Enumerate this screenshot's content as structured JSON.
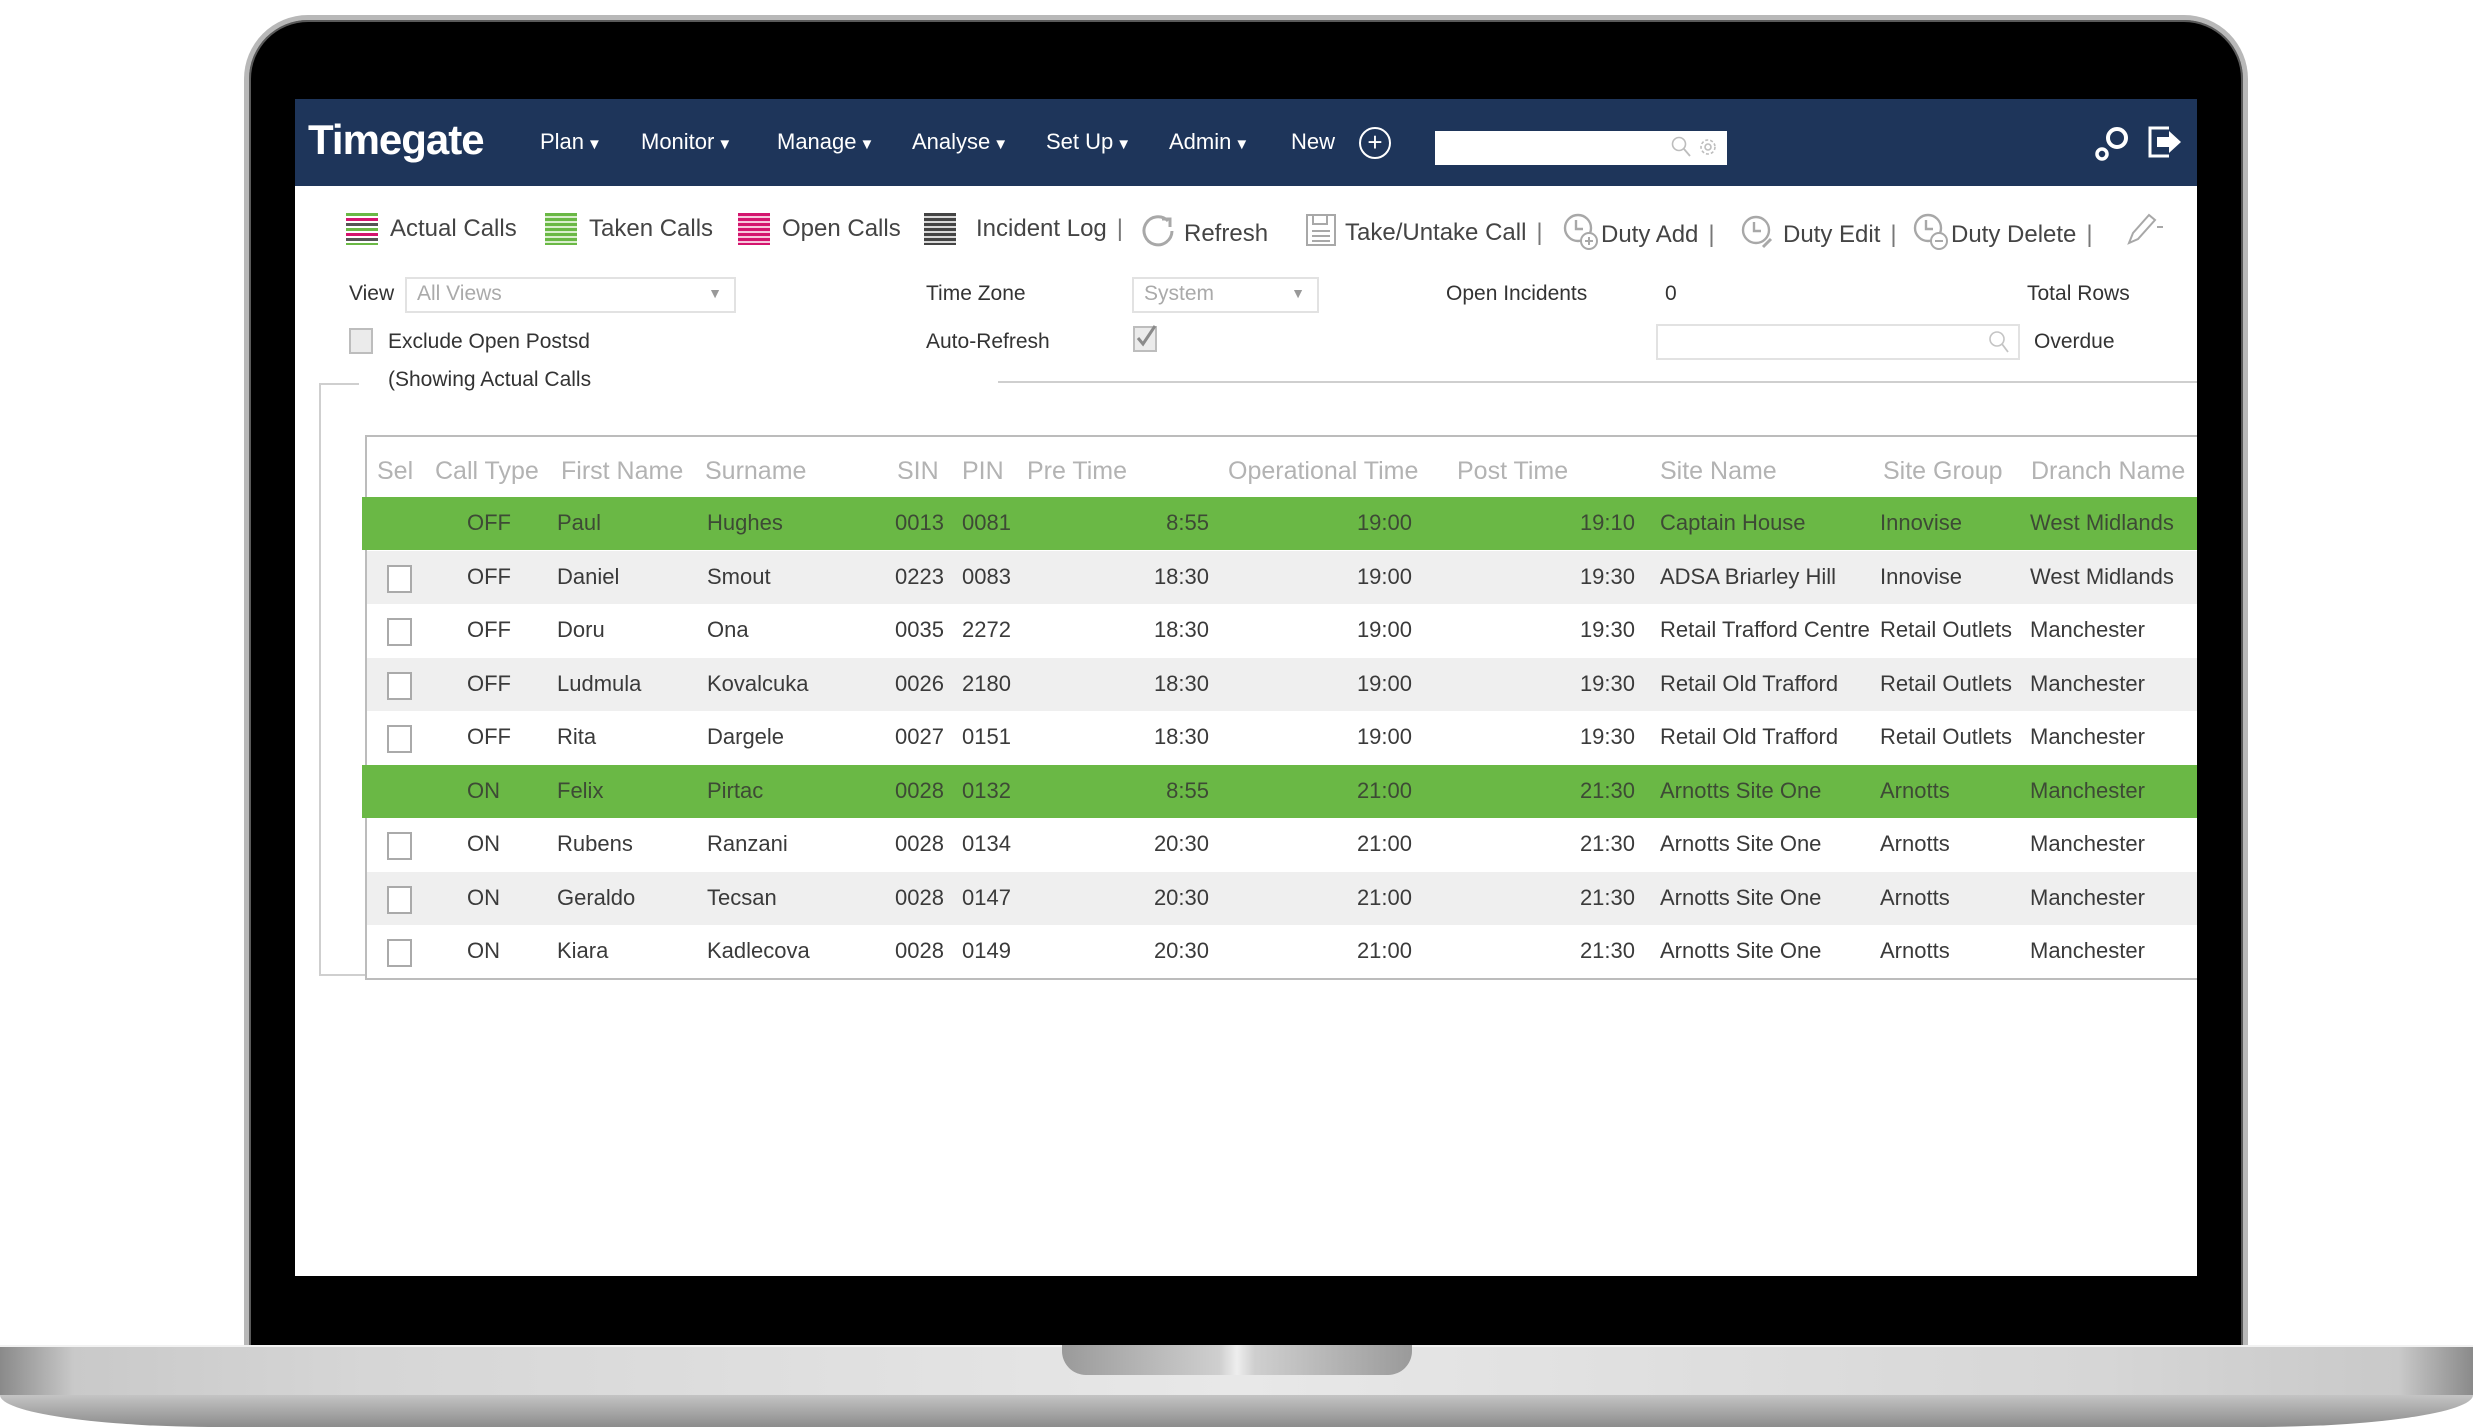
{
  "app": {
    "logo": "Timegate",
    "menu": [
      {
        "label": "Plan",
        "caret": "▼"
      },
      {
        "label": "Monitor",
        "caret": "▼"
      },
      {
        "label": "Manage",
        "caret": "▼"
      },
      {
        "label": "Analyse",
        "caret": "▼"
      },
      {
        "label": "Set Up",
        "caret": "▼"
      },
      {
        "label": "Admin",
        "caret": "▼"
      }
    ],
    "new_label": "New",
    "new_icon": "+",
    "search": {
      "value": "",
      "placeholder": ""
    }
  },
  "toolbar": {
    "actual_calls": "Actual Calls",
    "taken_calls": "Taken Calls",
    "open_calls": "Open Calls",
    "incident_log": "Incident Log",
    "refresh": "Refresh",
    "take_untake": "Take/Untake Call",
    "duty_add": "Duty Add",
    "duty_edit": "Duty Edit",
    "duty_delete": "Duty Delete",
    "separator": "|"
  },
  "filters": {
    "view_label": "View",
    "view_value": "All Views",
    "time_zone_label": "Time Zone",
    "time_zone_value": "System",
    "open_incidents_label": "Open Incidents",
    "open_incidents_value": "0",
    "total_rows_label": "Total Rows",
    "exclude_label": "Exclude Open Postsd",
    "auto_refresh_label": "Auto-Refresh",
    "overdue_label": "Overdue",
    "showing_label": "(Showing Actual Calls",
    "search_value": ""
  },
  "colors": {
    "nav": "#1e355a",
    "highlight_row": "#6ab845",
    "actual_pink": "#d4146e",
    "taken_green": "#6ab845",
    "incident_gray": "#444444"
  },
  "table": {
    "headers": [
      "Sel",
      "Call Type",
      "First Name",
      "Surname",
      "SIN",
      "PIN",
      "Pre Time",
      "Operational Time",
      "Post Time",
      "Site Name",
      "Site Group",
      "Dranch Name"
    ],
    "rows": [
      {
        "highlight": true,
        "checkbox": false,
        "call_type": "OFF",
        "first": "Paul",
        "surname": "Hughes",
        "sin": "0013",
        "pin": "0081",
        "pre": "8:55",
        "op": "19:00",
        "post": "19:10",
        "site": "Captain House",
        "group": "Innovise",
        "branch": "West Midlands"
      },
      {
        "highlight": false,
        "checkbox": true,
        "call_type": "OFF",
        "first": "Daniel",
        "surname": "Smout",
        "sin": "0223",
        "pin": "0083",
        "pre": "18:30",
        "op": "19:00",
        "post": "19:30",
        "site": "ADSA Briarley Hill",
        "group": "Innovise",
        "branch": "West Midlands"
      },
      {
        "highlight": false,
        "checkbox": true,
        "call_type": "OFF",
        "first": "Doru",
        "surname": "Ona",
        "sin": "0035",
        "pin": "2272",
        "pre": "18:30",
        "op": "19:00",
        "post": "19:30",
        "site": "Retail Trafford Centre",
        "group": "Retail Outlets",
        "branch": "Manchester"
      },
      {
        "highlight": false,
        "checkbox": true,
        "call_type": "OFF",
        "first": "Ludmula",
        "surname": "Kovalcuka",
        "sin": "0026",
        "pin": "2180",
        "pre": "18:30",
        "op": "19:00",
        "post": "19:30",
        "site": "Retail Old Trafford",
        "group": "Retail Outlets",
        "branch": "Manchester"
      },
      {
        "highlight": false,
        "checkbox": true,
        "call_type": "OFF",
        "first": "Rita",
        "surname": "Dargele",
        "sin": "0027",
        "pin": "0151",
        "pre": "18:30",
        "op": "19:00",
        "post": "19:30",
        "site": "Retail Old Trafford",
        "group": "Retail Outlets",
        "branch": "Manchester"
      },
      {
        "highlight": true,
        "checkbox": false,
        "call_type": "ON",
        "first": "Felix",
        "surname": "Pirtac",
        "sin": "0028",
        "pin": "0132",
        "pre": "8:55",
        "op": "21:00",
        "post": "21:30",
        "site": "Arnotts Site One",
        "group": "Arnotts",
        "branch": "Manchester"
      },
      {
        "highlight": false,
        "checkbox": true,
        "call_type": "ON",
        "first": "Rubens",
        "surname": "Ranzani",
        "sin": "0028",
        "pin": "0134",
        "pre": "20:30",
        "op": "21:00",
        "post": "21:30",
        "site": "Arnotts Site One",
        "group": "Arnotts",
        "branch": "Manchester"
      },
      {
        "highlight": false,
        "checkbox": true,
        "call_type": "ON",
        "first": "Geraldo",
        "surname": "Tecsan",
        "sin": "0028",
        "pin": "0147",
        "pre": "20:30",
        "op": "21:00",
        "post": "21:30",
        "site": "Arnotts Site One",
        "group": "Arnotts",
        "branch": "Manchester"
      },
      {
        "highlight": false,
        "checkbox": true,
        "call_type": "ON",
        "first": "Kiara",
        "surname": "Kadlecova",
        "sin": "0028",
        "pin": "0149",
        "pre": "20:30",
        "op": "21:00",
        "post": "21:30",
        "site": "Arnotts Site One",
        "group": "Arnotts",
        "branch": "Manchester"
      }
    ]
  }
}
